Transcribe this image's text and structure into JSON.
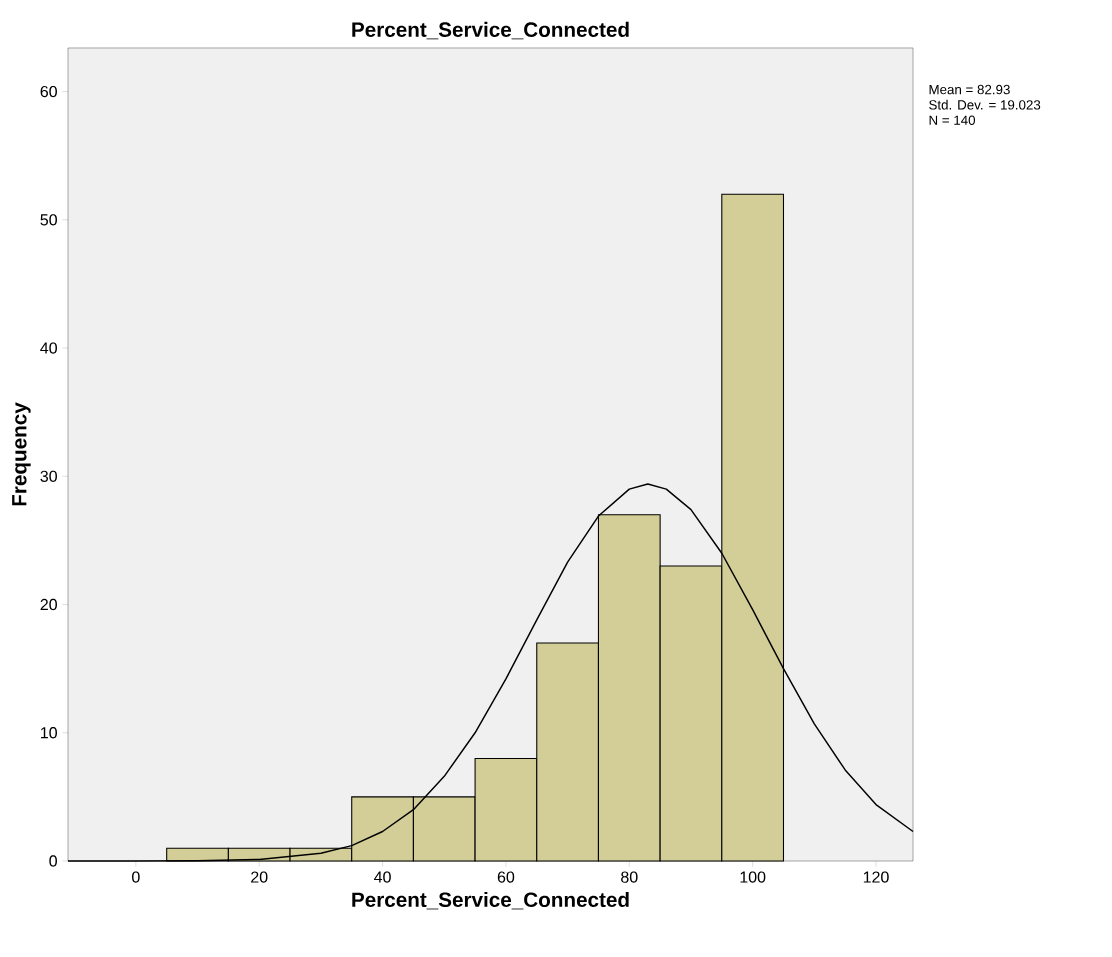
{
  "chart_data": {
    "type": "histogram",
    "title": "Percent_Service_Connected",
    "xlabel": "Percent_Service_Connected",
    "ylabel": "Frequency",
    "annotations": [
      "Mean = 82.93",
      "Std. Dev. = 19.023",
      "N = 140"
    ],
    "bins": [
      5,
      15,
      25,
      35,
      45,
      55,
      65,
      75,
      85,
      95,
      105
    ],
    "values": [
      1,
      1,
      1,
      5,
      5,
      8,
      17,
      27,
      23,
      52
    ],
    "color": "#d3ce97",
    "series": [
      {
        "type": "line",
        "color": "#000000",
        "x": [
          -11,
          0,
          10,
          20,
          30,
          35,
          40,
          45,
          50,
          55,
          60,
          65,
          70,
          75,
          80,
          83,
          86,
          90,
          95,
          100,
          105,
          110,
          115,
          120,
          126
        ],
        "values": [
          0,
          0,
          0.02,
          0.12,
          0.6,
          1.2,
          2.3,
          4.0,
          6.6,
          10.0,
          14.2,
          18.8,
          23.3,
          26.9,
          29.0,
          29.4,
          29.0,
          27.4,
          24.0,
          19.6,
          15.0,
          10.7,
          7.1,
          4.4,
          2.3
        ]
      }
    ],
    "xlim": [
      -11,
      126
    ],
    "ylim": [
      0,
      63.4
    ],
    "xticks": [
      0,
      20,
      40,
      60,
      80,
      100,
      120
    ],
    "yticks": [
      0,
      10,
      20,
      30,
      40,
      50,
      60
    ]
  }
}
